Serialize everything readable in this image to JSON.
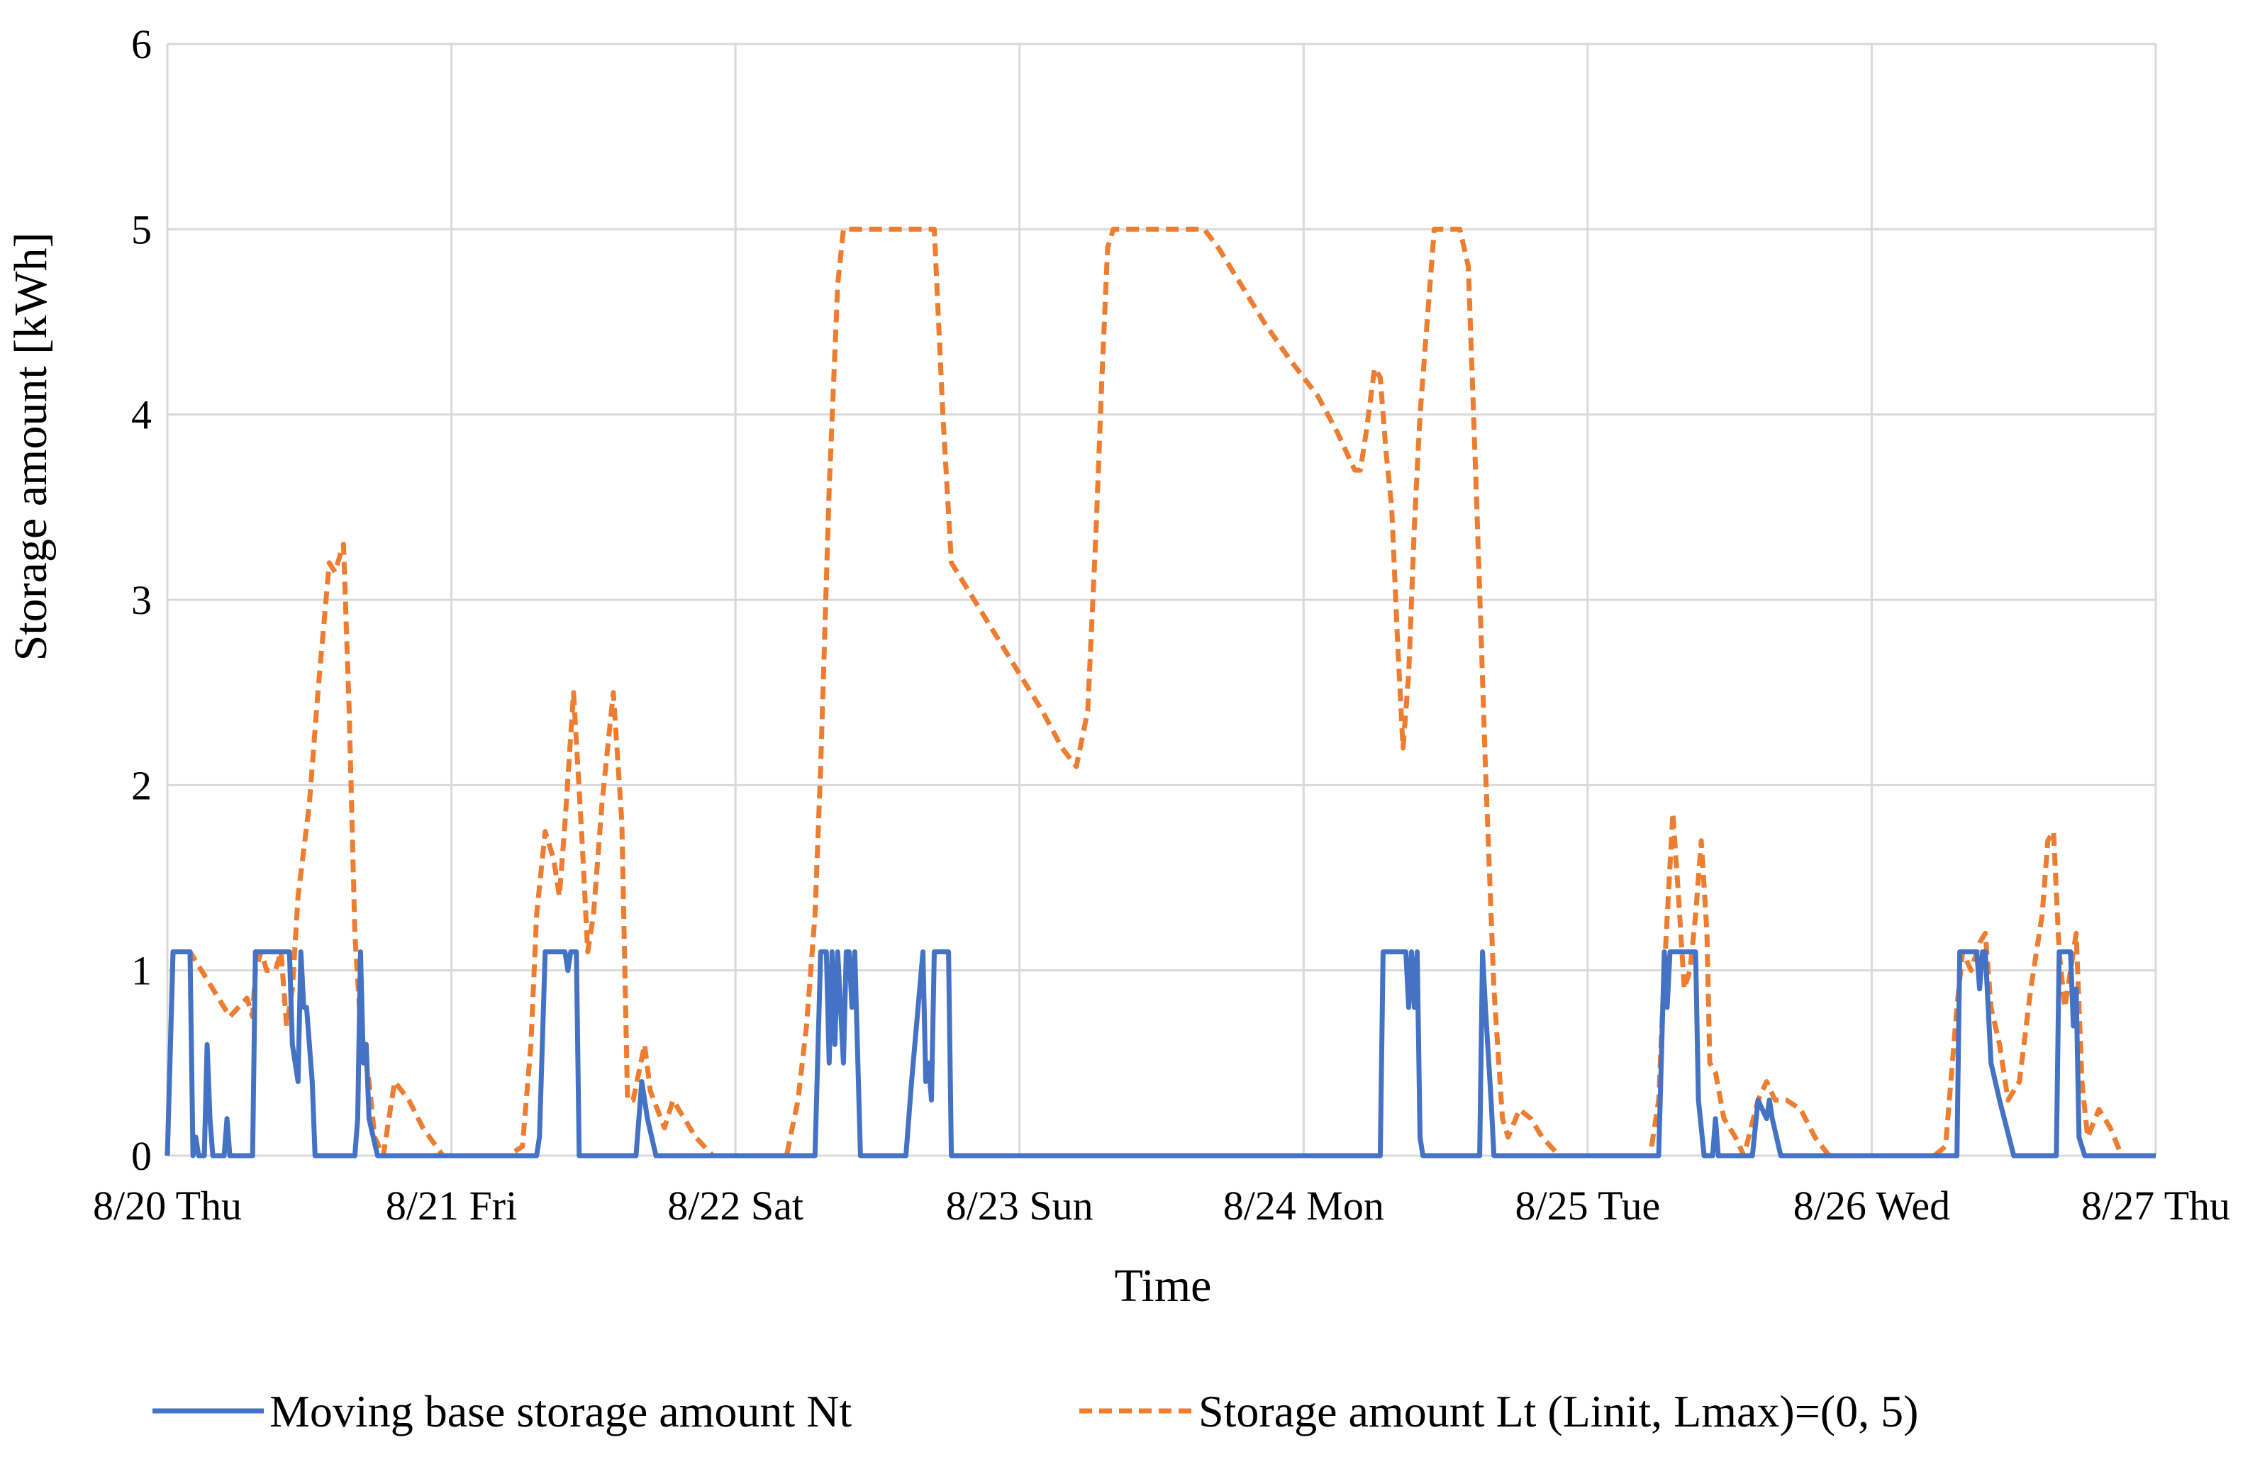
{
  "chart_data": {
    "type": "line",
    "title": "",
    "xlabel": "Time",
    "ylabel": "Storage amount [kWh]",
    "ylim": [
      0,
      6
    ],
    "xlim": [
      0,
      7
    ],
    "y_ticks": [
      "0",
      "1",
      "2",
      "3",
      "4",
      "5",
      "6"
    ],
    "x_ticks": [
      "8/20 Thu",
      "8/21 Fri",
      "8/22 Sat",
      "8/23 Sun",
      "8/24 Mon",
      "8/25 Tue",
      "8/26 Wed",
      "8/27 Thu"
    ],
    "x_units": "days since 8/20 00:00",
    "grid": true,
    "legend_position": "bottom",
    "colors": {
      "Nt": "#4472C4",
      "Lt": "#ED7D31",
      "grid": "#D9D9D9"
    },
    "series": [
      {
        "name": "Moving base storage amount Nt",
        "style": "solid",
        "color": "#4472C4",
        "points": [
          [
            0,
            0
          ],
          [
            0.02,
            1.1
          ],
          [
            0.08,
            1.1
          ],
          [
            0.09,
            0
          ],
          [
            0.1,
            0.1
          ],
          [
            0.11,
            0
          ],
          [
            0.13,
            0
          ],
          [
            0.14,
            0.6
          ],
          [
            0.15,
            0.2
          ],
          [
            0.16,
            0
          ],
          [
            0.2,
            0
          ],
          [
            0.21,
            0.2
          ],
          [
            0.22,
            0
          ],
          [
            0.3,
            0
          ],
          [
            0.31,
            1.1
          ],
          [
            0.43,
            1.1
          ],
          [
            0.44,
            0.6
          ],
          [
            0.45,
            0.5
          ],
          [
            0.46,
            0.4
          ],
          [
            0.47,
            1.1
          ],
          [
            0.48,
            0.8
          ],
          [
            0.49,
            0.8
          ],
          [
            0.51,
            0.4
          ],
          [
            0.52,
            0
          ],
          [
            0.66,
            0
          ],
          [
            0.67,
            0.2
          ],
          [
            0.68,
            1.1
          ],
          [
            0.69,
            0.5
          ],
          [
            0.7,
            0.6
          ],
          [
            0.71,
            0.2
          ],
          [
            0.74,
            0
          ],
          [
            1.3,
            0
          ],
          [
            1.31,
            0.1
          ],
          [
            1.33,
            1.1
          ],
          [
            1.4,
            1.1
          ],
          [
            1.41,
            1.0
          ],
          [
            1.42,
            1.1
          ],
          [
            1.44,
            1.1
          ],
          [
            1.45,
            0
          ],
          [
            1.65,
            0
          ],
          [
            1.67,
            0.4
          ],
          [
            1.69,
            0.2
          ],
          [
            1.72,
            0
          ],
          [
            2.28,
            0
          ],
          [
            2.3,
            1.1
          ],
          [
            2.32,
            1.1
          ],
          [
            2.33,
            0.5
          ],
          [
            2.34,
            1.1
          ],
          [
            2.35,
            0.6
          ],
          [
            2.36,
            1.1
          ],
          [
            2.38,
            0.5
          ],
          [
            2.39,
            1.1
          ],
          [
            2.4,
            1.1
          ],
          [
            2.41,
            0.8
          ],
          [
            2.42,
            1.1
          ],
          [
            2.44,
            0
          ],
          [
            2.6,
            0
          ],
          [
            2.62,
            0.4
          ],
          [
            2.66,
            1.1
          ],
          [
            2.67,
            0.4
          ],
          [
            2.68,
            0.5
          ],
          [
            2.69,
            0.3
          ],
          [
            2.7,
            1.1
          ],
          [
            2.75,
            1.1
          ],
          [
            2.76,
            0
          ],
          [
            4.27,
            0
          ],
          [
            4.28,
            1.1
          ],
          [
            4.36,
            1.1
          ],
          [
            4.37,
            0.8
          ],
          [
            4.38,
            1.1
          ],
          [
            4.39,
            0.8
          ],
          [
            4.4,
            1.1
          ],
          [
            4.41,
            0.1
          ],
          [
            4.42,
            0
          ],
          [
            4.62,
            0
          ],
          [
            4.63,
            1.1
          ],
          [
            4.64,
            0.8
          ],
          [
            4.66,
            0.3
          ],
          [
            4.67,
            0
          ],
          [
            5.25,
            0
          ],
          [
            5.27,
            1.1
          ],
          [
            5.28,
            0.8
          ],
          [
            5.29,
            1.1
          ],
          [
            5.38,
            1.1
          ],
          [
            5.39,
            0.3
          ],
          [
            5.41,
            0
          ],
          [
            5.44,
            0
          ],
          [
            5.45,
            0.2
          ],
          [
            5.46,
            0
          ],
          [
            5.58,
            0
          ],
          [
            5.6,
            0.3
          ],
          [
            5.63,
            0.2
          ],
          [
            5.64,
            0.3
          ],
          [
            5.65,
            0.2
          ],
          [
            5.68,
            0
          ],
          [
            6.3,
            0
          ],
          [
            6.31,
            1.1
          ],
          [
            6.37,
            1.1
          ],
          [
            6.38,
            0.9
          ],
          [
            6.39,
            1.1
          ],
          [
            6.4,
            1.1
          ],
          [
            6.42,
            0.5
          ],
          [
            6.45,
            0.3
          ],
          [
            6.5,
            0
          ],
          [
            6.65,
            0
          ],
          [
            6.66,
            1.1
          ],
          [
            6.7,
            1.1
          ],
          [
            6.71,
            0.7
          ],
          [
            6.72,
            0.9
          ],
          [
            6.73,
            0.1
          ],
          [
            6.75,
            0
          ],
          [
            7,
            0
          ]
        ]
      },
      {
        "name": "Storage amount Lt (Linit, Lmax)=(0, 5)",
        "style": "dashed",
        "color": "#ED7D31",
        "points": [
          [
            0,
            0
          ],
          [
            0.02,
            1.1
          ],
          [
            0.08,
            1.1
          ],
          [
            0.12,
            1.0
          ],
          [
            0.18,
            0.85
          ],
          [
            0.22,
            0.75
          ],
          [
            0.25,
            0.8
          ],
          [
            0.28,
            0.85
          ],
          [
            0.3,
            0.75
          ],
          [
            0.31,
            1.0
          ],
          [
            0.33,
            1.1
          ],
          [
            0.35,
            1.0
          ],
          [
            0.38,
            1.0
          ],
          [
            0.4,
            1.1
          ],
          [
            0.42,
            0.7
          ],
          [
            0.44,
            0.9
          ],
          [
            0.46,
            1.4
          ],
          [
            0.5,
            1.9
          ],
          [
            0.53,
            2.5
          ],
          [
            0.57,
            3.2
          ],
          [
            0.59,
            3.15
          ],
          [
            0.62,
            3.3
          ],
          [
            0.64,
            2.4
          ],
          [
            0.66,
            1.2
          ],
          [
            0.68,
            0.7
          ],
          [
            0.71,
            0.4
          ],
          [
            0.73,
            0.1
          ],
          [
            0.76,
            0
          ],
          [
            0.8,
            0.4
          ],
          [
            0.85,
            0.3
          ],
          [
            0.9,
            0.15
          ],
          [
            0.97,
            0
          ],
          [
            1.2,
            0
          ],
          [
            1.25,
            0.05
          ],
          [
            1.28,
            0.6
          ],
          [
            1.3,
            1.3
          ],
          [
            1.33,
            1.75
          ],
          [
            1.36,
            1.6
          ],
          [
            1.38,
            1.4
          ],
          [
            1.4,
            1.8
          ],
          [
            1.43,
            2.5
          ],
          [
            1.46,
            1.7
          ],
          [
            1.48,
            1.1
          ],
          [
            1.5,
            1.3
          ],
          [
            1.53,
            1.9
          ],
          [
            1.57,
            2.5
          ],
          [
            1.6,
            1.8
          ],
          [
            1.62,
            0.3
          ],
          [
            1.64,
            0.3
          ],
          [
            1.68,
            0.6
          ],
          [
            1.7,
            0.35
          ],
          [
            1.75,
            0.15
          ],
          [
            1.78,
            0.3
          ],
          [
            1.82,
            0.2
          ],
          [
            1.86,
            0.1
          ],
          [
            1.92,
            0
          ],
          [
            2.18,
            0
          ],
          [
            2.22,
            0.3
          ],
          [
            2.25,
            0.7
          ],
          [
            2.28,
            1.3
          ],
          [
            2.3,
            2.1
          ],
          [
            2.33,
            3.6
          ],
          [
            2.36,
            4.7
          ],
          [
            2.38,
            5.0
          ],
          [
            2.7,
            5.0
          ],
          [
            2.73,
            4.0
          ],
          [
            2.76,
            3.2
          ],
          [
            2.82,
            3.05
          ],
          [
            2.9,
            2.85
          ],
          [
            3.0,
            2.6
          ],
          [
            3.08,
            2.4
          ],
          [
            3.15,
            2.2
          ],
          [
            3.2,
            2.1
          ],
          [
            3.24,
            2.4
          ],
          [
            3.27,
            3.4
          ],
          [
            3.29,
            4.2
          ],
          [
            3.31,
            4.9
          ],
          [
            3.33,
            5.0
          ],
          [
            3.65,
            5.0
          ],
          [
            3.7,
            4.9
          ],
          [
            3.78,
            4.7
          ],
          [
            3.86,
            4.5
          ],
          [
            3.95,
            4.3
          ],
          [
            4.05,
            4.1
          ],
          [
            4.12,
            3.9
          ],
          [
            4.18,
            3.7
          ],
          [
            4.2,
            3.7
          ],
          [
            4.22,
            3.9
          ],
          [
            4.25,
            4.25
          ],
          [
            4.27,
            4.2
          ],
          [
            4.29,
            3.8
          ],
          [
            4.31,
            3.5
          ],
          [
            4.33,
            2.8
          ],
          [
            4.35,
            2.2
          ],
          [
            4.37,
            2.6
          ],
          [
            4.39,
            3.4
          ],
          [
            4.41,
            4.0
          ],
          [
            4.44,
            4.6
          ],
          [
            4.46,
            5.0
          ],
          [
            4.55,
            5.0
          ],
          [
            4.58,
            4.8
          ],
          [
            4.61,
            3.5
          ],
          [
            4.64,
            2.1
          ],
          [
            4.67,
            0.9
          ],
          [
            4.7,
            0.2
          ],
          [
            4.72,
            0.1
          ],
          [
            4.76,
            0.25
          ],
          [
            4.8,
            0.2
          ],
          [
            4.84,
            0.1
          ],
          [
            4.9,
            0
          ],
          [
            5.22,
            0
          ],
          [
            5.25,
            0.3
          ],
          [
            5.27,
            1.0
          ],
          [
            5.3,
            1.85
          ],
          [
            5.32,
            1.4
          ],
          [
            5.34,
            0.9
          ],
          [
            5.36,
            1.0
          ],
          [
            5.38,
            1.3
          ],
          [
            5.4,
            1.7
          ],
          [
            5.42,
            1.2
          ],
          [
            5.43,
            0.5
          ],
          [
            5.45,
            0.45
          ],
          [
            5.48,
            0.2
          ],
          [
            5.52,
            0.1
          ],
          [
            5.55,
            0
          ],
          [
            5.6,
            0.3
          ],
          [
            5.63,
            0.4
          ],
          [
            5.66,
            0.3
          ],
          [
            5.7,
            0.3
          ],
          [
            5.75,
            0.25
          ],
          [
            5.8,
            0.1
          ],
          [
            5.85,
            0
          ],
          [
            6.22,
            0
          ],
          [
            6.26,
            0.05
          ],
          [
            6.3,
            0.8
          ],
          [
            6.32,
            1.1
          ],
          [
            6.35,
            1.0
          ],
          [
            6.38,
            1.15
          ],
          [
            6.4,
            1.2
          ],
          [
            6.42,
            0.8
          ],
          [
            6.45,
            0.6
          ],
          [
            6.48,
            0.3
          ],
          [
            6.52,
            0.4
          ],
          [
            6.56,
            0.9
          ],
          [
            6.6,
            1.3
          ],
          [
            6.62,
            1.7
          ],
          [
            6.64,
            1.75
          ],
          [
            6.66,
            1.1
          ],
          [
            6.68,
            0.8
          ],
          [
            6.7,
            1.0
          ],
          [
            6.72,
            1.2
          ],
          [
            6.74,
            0.4
          ],
          [
            6.76,
            0.1
          ],
          [
            6.8,
            0.25
          ],
          [
            6.84,
            0.15
          ],
          [
            6.88,
            0
          ],
          [
            7,
            0
          ]
        ]
      }
    ]
  }
}
